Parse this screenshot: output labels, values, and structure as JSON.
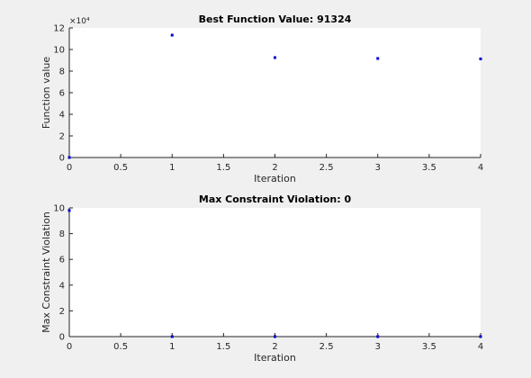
{
  "chart_data": [
    {
      "type": "scatter",
      "title": "Best Function Value: 91324",
      "xlabel": "Iteration",
      "ylabel": "Function value",
      "y_exponent_label": "×10⁴",
      "x": [
        0,
        1,
        2,
        3,
        4
      ],
      "values": [
        0,
        113300,
        92500,
        91700,
        91324
      ],
      "color": "#0000cc",
      "xlim": [
        0,
        4
      ],
      "xticks": [
        0,
        0.5,
        1,
        1.5,
        2,
        2.5,
        3,
        3.5,
        4
      ],
      "ylim": [
        0,
        120000
      ],
      "yticks": [
        {
          "value": 0,
          "label": "0"
        },
        {
          "value": 20000,
          "label": "2"
        },
        {
          "value": 40000,
          "label": "4"
        },
        {
          "value": 60000,
          "label": "6"
        },
        {
          "value": 80000,
          "label": "8"
        },
        {
          "value": 100000,
          "label": "10"
        },
        {
          "value": 120000,
          "label": "12"
        }
      ]
    },
    {
      "type": "scatter",
      "title": "Max Constraint Violation: 0",
      "xlabel": "Iteration",
      "ylabel": "Max Constraint Violation",
      "x": [
        0,
        1,
        2,
        3,
        4
      ],
      "values": [
        9.8,
        0,
        0,
        0,
        0
      ],
      "color": "#0000cc",
      "xlim": [
        0,
        4
      ],
      "xticks": [
        0,
        0.5,
        1,
        1.5,
        2,
        2.5,
        3,
        3.5,
        4
      ],
      "ylim": [
        0,
        10
      ],
      "yticks": [
        0,
        2,
        4,
        6,
        8,
        10
      ]
    }
  ]
}
